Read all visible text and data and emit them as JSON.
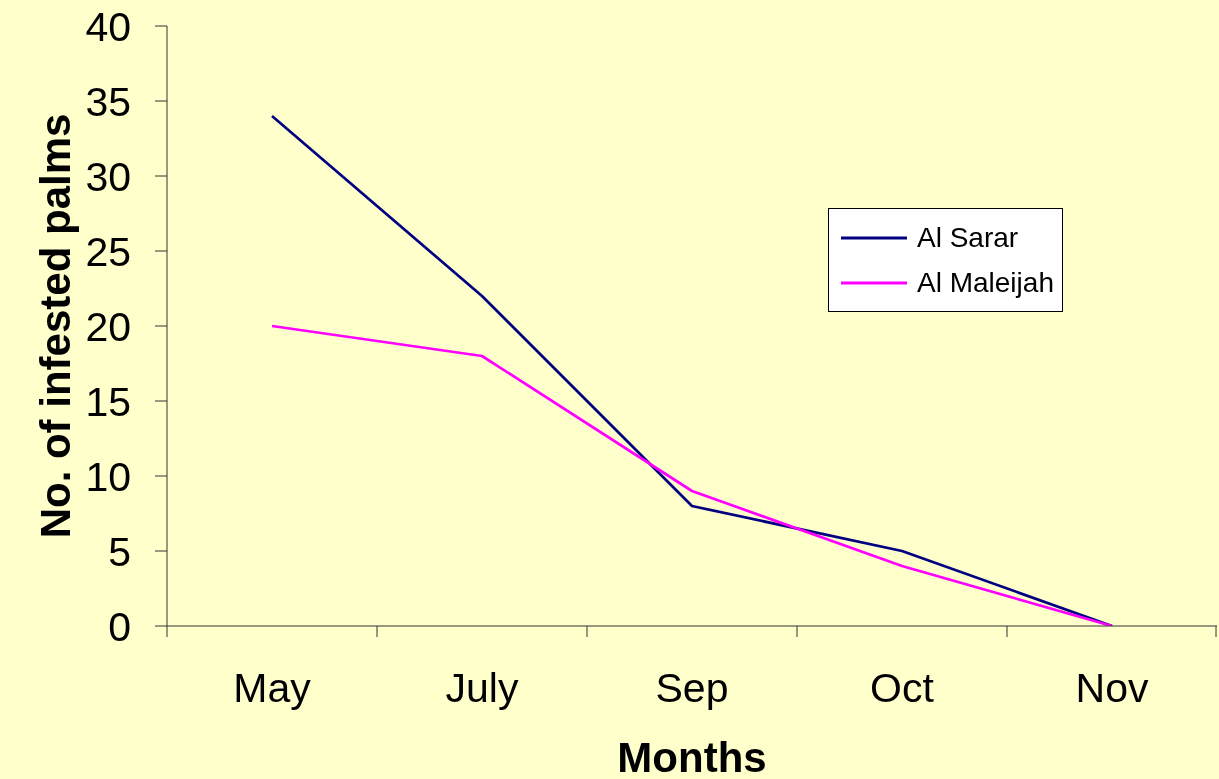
{
  "chart_data": {
    "type": "line",
    "xlabel": "Months",
    "ylabel": "No. of infested palms",
    "categories": [
      "May",
      "July",
      "Sep",
      "Oct",
      "Nov"
    ],
    "series": [
      {
        "name": "Al Sarar",
        "color": "#000080",
        "values": [
          34,
          22,
          8,
          5,
          0
        ]
      },
      {
        "name": "Al Maleijah",
        "color": "#ff00ff",
        "values": [
          20,
          18,
          9,
          4,
          0
        ]
      }
    ],
    "ylim": [
      0,
      40
    ],
    "yticks": [
      0,
      5,
      10,
      15,
      20,
      25,
      30,
      35,
      40
    ],
    "legend": "right",
    "marker": "none",
    "line_style": "solid"
  }
}
